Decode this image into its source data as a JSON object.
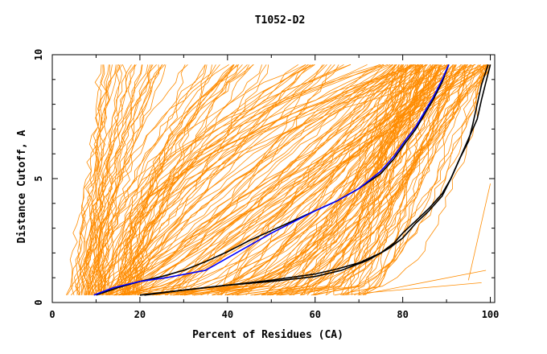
{
  "chart_data": {
    "type": "line",
    "title": "T1052-D2",
    "xlabel": "Percent of Residues (CA)",
    "ylabel": "Distance Cutoff, A",
    "xlim": [
      0,
      101
    ],
    "ylim": [
      0,
      10
    ],
    "x_ticks": [
      "0",
      "20",
      "40",
      "60",
      "80",
      "100"
    ],
    "y_ticks": [
      "0",
      "5",
      "10"
    ],
    "grid": false,
    "legend": "none",
    "colors": {
      "background_models": "#ff8c00",
      "highlight_black": "#000000",
      "highlight_blue": "#0000ff",
      "frame": "#000000"
    },
    "highlighted_series": [
      {
        "color": "#000000",
        "x": [
          10,
          15,
          20,
          25,
          30,
          35,
          40,
          45,
          50,
          55,
          60,
          65,
          70,
          75,
          78,
          80,
          83,
          85,
          87,
          89,
          90.5
        ],
        "y": [
          0.3,
          0.6,
          0.85,
          1.05,
          1.3,
          1.65,
          2.05,
          2.5,
          2.9,
          3.3,
          3.7,
          4.1,
          4.6,
          5.2,
          5.8,
          6.3,
          7.0,
          7.6,
          8.2,
          8.9,
          9.6
        ]
      },
      {
        "color": "#0000ff",
        "x": [
          9.5,
          14,
          20,
          26,
          35,
          40,
          45,
          50,
          55,
          60,
          65,
          70,
          75,
          78,
          80,
          83,
          85,
          87,
          89,
          90.5
        ],
        "y": [
          0.3,
          0.6,
          0.85,
          1.0,
          1.3,
          1.8,
          2.3,
          2.8,
          3.25,
          3.7,
          4.1,
          4.6,
          5.3,
          5.9,
          6.4,
          7.1,
          7.7,
          8.3,
          9.0,
          9.6
        ]
      },
      {
        "color": "#000000",
        "x": [
          20,
          30,
          40,
          50,
          60,
          65,
          70,
          75,
          78,
          80,
          83,
          86,
          89,
          91,
          93,
          95,
          96,
          97,
          98,
          99.5
        ],
        "y": [
          0.3,
          0.5,
          0.7,
          0.9,
          1.15,
          1.35,
          1.6,
          2.0,
          2.4,
          2.8,
          3.3,
          3.8,
          4.4,
          5.0,
          5.8,
          6.5,
          7.2,
          8.0,
          8.8,
          9.6
        ]
      },
      {
        "color": "#000000",
        "x": [
          21,
          30,
          40,
          50,
          60,
          66,
          72,
          77,
          80,
          83,
          86,
          89,
          91,
          93,
          95,
          97,
          98,
          99,
          100
        ],
        "y": [
          0.3,
          0.5,
          0.7,
          0.85,
          1.05,
          1.3,
          1.7,
          2.2,
          2.6,
          3.2,
          3.7,
          4.3,
          5.0,
          5.8,
          6.6,
          7.4,
          8.2,
          8.9,
          9.6
        ]
      }
    ]
  }
}
